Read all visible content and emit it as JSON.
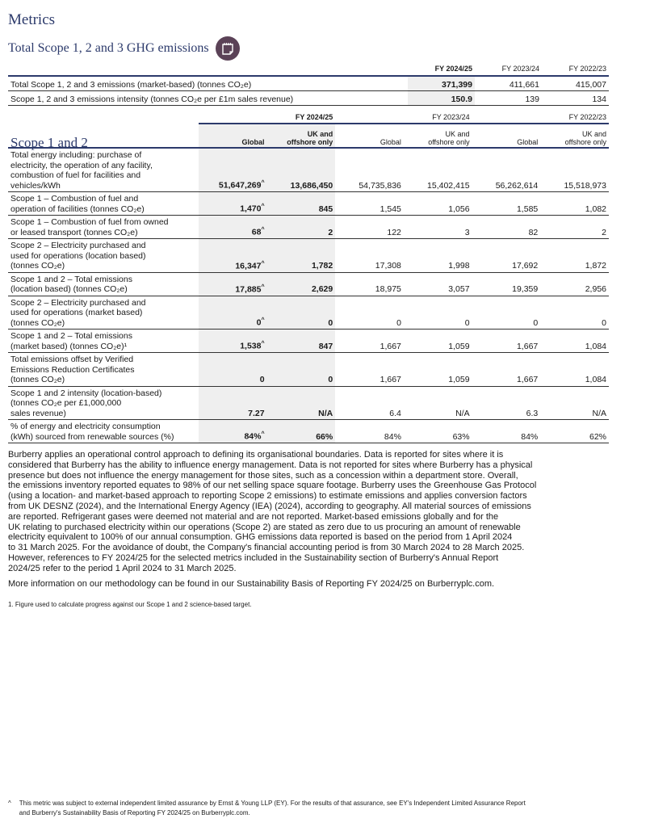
{
  "page": {
    "title": "Metrics",
    "subtitle": "Total Scope 1, 2 and 3 GHG emissions",
    "subtitle_icon": "notes-icon"
  },
  "summary_table": {
    "headers": [
      "FY 2024/25",
      "FY 2023/24",
      "FY 2022/23"
    ],
    "rows": [
      {
        "label": "Total Scope 1, 2 and 3 emissions (market-based) (tonnes CO₂e)",
        "values": [
          "371,399",
          "411,661",
          "415,007"
        ]
      },
      {
        "label": "Scope 1, 2 and 3 emissions intensity (tonnes CO₂e per £1m sales revenue)",
        "values": [
          "150.9",
          "139",
          "134"
        ]
      }
    ]
  },
  "scope_table": {
    "heading": "Scope 1 and 2",
    "years": [
      "FY 2024/25",
      "FY 2023/24",
      "FY 2022/23"
    ],
    "subheaders": [
      "Global",
      "UK and\noffshore only",
      "Global",
      "UK and\noffshore only",
      "Global",
      "UK and\noffshore only"
    ],
    "rows": [
      {
        "label": "Total energy including: purchase of\nelectricity, the operation of any facility,\ncombustion of fuel for facilities and\nvehicles/kWh",
        "values": [
          "51,647,269",
          "13,686,450",
          "54,735,836",
          "15,402,415",
          "56,262,614",
          "15,518,973"
        ],
        "marks": [
          "^",
          "",
          "",
          "",
          "",
          ""
        ]
      },
      {
        "label": "Scope 1 – Combustion of fuel and\noperation of facilities (tonnes CO₂e)",
        "values": [
          "1,470",
          "845",
          "1,545",
          "1,056",
          "1,585",
          "1,082"
        ],
        "marks": [
          "^",
          "",
          "",
          "",
          "",
          ""
        ]
      },
      {
        "label": "Scope 1 – Combustion of fuel from owned\nor leased transport (tonnes CO₂e)",
        "values": [
          "68",
          "2",
          "122",
          "3",
          "82",
          "2"
        ],
        "marks": [
          "^",
          "",
          "",
          "",
          "",
          ""
        ]
      },
      {
        "label": "Scope 2 – Electricity purchased and\nused for operations (location based)\n(tonnes CO₂e)",
        "values": [
          "16,347",
          "1,782",
          "17,308",
          "1,998",
          "17,692",
          "1,872"
        ],
        "marks": [
          "^",
          "",
          "",
          "",
          "",
          ""
        ]
      },
      {
        "label": "Scope 1 and 2 – Total emissions\n(location based) (tonnes CO₂e)",
        "values": [
          "17,885",
          "2,629",
          "18,975",
          "3,057",
          "19,359",
          "2,956"
        ],
        "marks": [
          "^",
          "",
          "",
          "",
          "",
          ""
        ]
      },
      {
        "label": "Scope 2 – Electricity purchased and\nused for operations (market based)\n(tonnes CO₂e)",
        "values": [
          "0",
          "0",
          "0",
          "0",
          "0",
          "0"
        ],
        "marks": [
          "^",
          "",
          "",
          "",
          "",
          ""
        ]
      },
      {
        "label": "Scope 1 and 2 – Total emissions\n(market based) (tonnes CO₂e)¹",
        "values": [
          "1,538",
          "847",
          "1,667",
          "1,059",
          "1,667",
          "1,084"
        ],
        "marks": [
          "^",
          "",
          "",
          "",
          "",
          ""
        ]
      },
      {
        "label": "Total emissions offset by Verified\nEmissions Reduction Certificates\n(tonnes CO₂e)",
        "values": [
          "0",
          "0",
          "1,667",
          "1,059",
          "1,667",
          "1,084"
        ],
        "marks": [
          "",
          "",
          "",
          "",
          "",
          ""
        ]
      },
      {
        "label": "Scope 1 and 2 intensity (location-based)\n(tonnes CO₂e per £1,000,000\nsales revenue)",
        "values": [
          "7.27",
          "N/A",
          "6.4",
          "N/A",
          "6.3",
          "N/A"
        ],
        "marks": [
          "",
          "",
          "",
          "",
          "",
          ""
        ]
      },
      {
        "label": "% of energy and electricity consumption\n(kWh) sourced from renewable sources (%)",
        "values": [
          "84%",
          "66%",
          "84%",
          "63%",
          "84%",
          "62%"
        ],
        "marks": [
          "^",
          "",
          "",
          "",
          "",
          ""
        ]
      }
    ]
  },
  "body": {
    "paragraph": "Burberry applies an operational control approach to defining its organisational boundaries. Data is reported for sites where it is\nconsidered that Burberry has the ability to influence energy management. Data is not reported for sites where Burberry has a physical\npresence but does not influence the energy management for those sites, such as a concession within a department store. Overall,\nthe emissions inventory reported equates to 98% of our net selling space square footage. Burberry uses the Greenhouse Gas Protocol\n(using a location- and market-based approach to reporting Scope 2 emissions) to estimate emissions and applies conversion factors\nfrom UK DESNZ (2024), and the International Energy Agency (IEA) (2024), according to geography. All material sources of emissions\nare reported. Refrigerant gases were deemed not material and are not reported. Market-based emissions globally and for the\nUK relating to purchased electricity within our operations (Scope 2) are stated as zero due to us procuring an amount of renewable\nelectricity equivalent to 100% of our annual consumption. GHG emissions data reported is based on the period from 1 April 2024\nto 31 March 2025. For the avoidance of doubt, the Company's financial accounting period is from 30 March 2024 to 28 March 2025.\nHowever, references to FY 2024/25 for the selected metrics included in the Sustainability section of Burberry's Annual Report\n2024/25 refer to the period 1 April 2024 to 31 March 2025.",
    "more_info": "More information on our methodology can be found in our Sustainability Basis of Reporting FY 2024/25 on Burberryplc.com.",
    "footnote_1": "1.  Figure used to calculate progress against our Scope 1 and 2 science-based target."
  },
  "assurance_note": {
    "marker": "^",
    "text": "This metric was subject to external independent limited assurance by Ernst & Young LLP (EY). For the results of that assurance, see EY's Independent Limited Assurance Report\nand Burberry's Sustainability Basis of Reporting FY 2024/25 on Burberryplc.com."
  },
  "colors": {
    "heading": "#2c3a6b",
    "shade": "#efefef",
    "icon_bg": "#5b4257"
  }
}
